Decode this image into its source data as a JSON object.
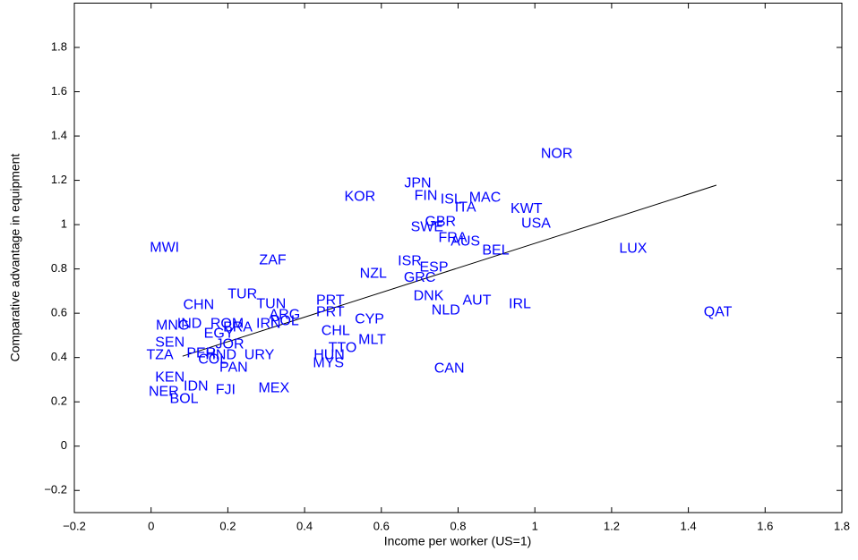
{
  "chart_data": {
    "type": "scatter",
    "x_label": "Income per worker (US=1)",
    "y_label": "Comparative advantage in equipment",
    "color": "#0000ff",
    "labels": [
      "NOR",
      "JPN",
      "FIN",
      "KOR",
      "ISL",
      "MAC",
      "ITA",
      "KWT",
      "USA",
      "GBR",
      "SWE",
      "FRA",
      "AUS",
      "BEL",
      "LUX",
      "MWI",
      "ZAF",
      "ISR",
      "ESP",
      "NZL",
      "GRC",
      "TUR",
      "DNK",
      "AUT",
      "IRL",
      "QAT",
      "TUN",
      "CHN",
      "PRT",
      "PRT",
      "NLD",
      "ARG",
      "CYP",
      "IND",
      "ROM",
      "MNG",
      "BRA",
      "IRN",
      "POL",
      "EGY",
      "CHL",
      "MLT",
      "SEN",
      "JOR",
      "TTO",
      "TZA",
      "PER",
      "HND",
      "URY",
      "HUN",
      "MYS",
      "COL",
      "PAN",
      "CAN",
      "KEN",
      "IDN",
      "NER",
      "FJI",
      "MEX",
      "BOL"
    ],
    "x": [
      1.057,
      0.695,
      0.716,
      0.544,
      0.782,
      0.87,
      0.819,
      0.978,
      1.003,
      0.754,
      0.719,
      0.786,
      0.819,
      0.898,
      1.256,
      0.035,
      0.317,
      0.674,
      0.737,
      0.579,
      0.7,
      0.238,
      0.723,
      0.849,
      0.961,
      1.477,
      0.313,
      0.124,
      0.467,
      0.467,
      0.768,
      0.348,
      0.569,
      0.1,
      0.198,
      0.056,
      0.226,
      0.306,
      0.348,
      0.177,
      0.481,
      0.576,
      0.049,
      0.205,
      0.499,
      0.023,
      0.131,
      0.182,
      0.282,
      0.464,
      0.462,
      0.161,
      0.215,
      0.777,
      0.049,
      0.117,
      0.033,
      0.194,
      0.32,
      0.086
    ],
    "y": [
      1.319,
      1.186,
      1.129,
      1.125,
      1.113,
      1.121,
      1.077,
      1.069,
      1.004,
      1.012,
      0.988,
      0.939,
      0.923,
      0.883,
      0.891,
      0.895,
      0.838,
      0.834,
      0.806,
      0.778,
      0.758,
      0.685,
      0.677,
      0.657,
      0.64,
      0.604,
      0.64,
      0.636,
      0.657,
      0.604,
      0.612,
      0.592,
      0.572,
      0.552,
      0.552,
      0.543,
      0.535,
      0.552,
      0.564,
      0.507,
      0.519,
      0.479,
      0.467,
      0.459,
      0.442,
      0.41,
      0.418,
      0.41,
      0.41,
      0.41,
      0.374,
      0.39,
      0.354,
      0.349,
      0.309,
      0.269,
      0.244,
      0.253,
      0.261,
      0.212
    ],
    "trend": {
      "x": [
        0.082,
        1.473
      ],
      "y": [
        0.406,
        1.178
      ]
    },
    "xlim": [
      -0.2,
      1.8
    ],
    "ylim": [
      -0.3,
      2.0
    ],
    "xticks": [
      {
        "value": -0.2,
        "label": "−0.2"
      },
      0,
      0.2,
      0.4,
      0.6,
      0.8,
      1,
      1.2,
      1.4,
      1.6,
      1.8
    ],
    "yticks": [
      {
        "value": -0.2,
        "label": "−0.2"
      },
      0,
      0.2,
      0.4,
      0.6,
      0.8,
      1,
      1.2,
      1.4,
      1.6,
      1.8
    ]
  }
}
